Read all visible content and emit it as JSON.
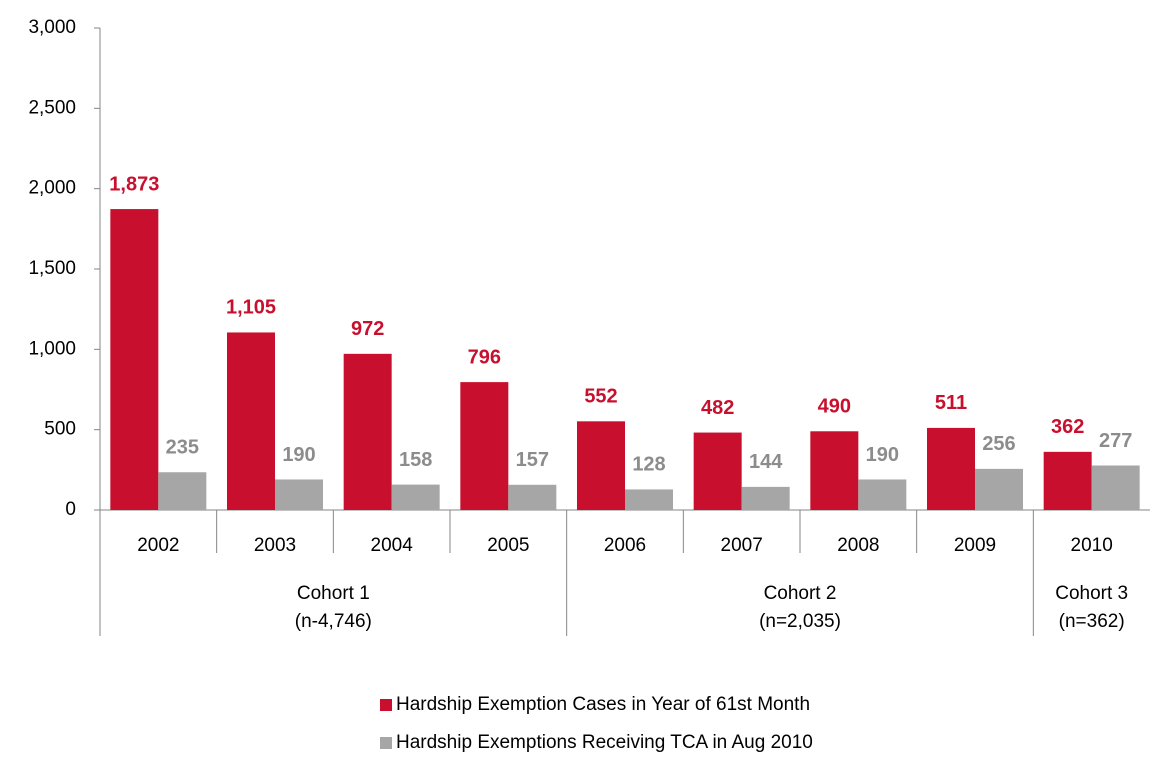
{
  "chart_data": {
    "type": "bar",
    "groups": [
      {
        "label": "Cohort 1",
        "sublabel": "(n-4,746)",
        "categories": [
          "2002",
          "2003",
          "2004",
          "2005"
        ]
      },
      {
        "label": "Cohort 2",
        "sublabel": "(n=2,035)",
        "categories": [
          "2006",
          "2007",
          "2008",
          "2009"
        ]
      },
      {
        "label": "Cohort 3",
        "sublabel": "(n=362)",
        "categories": [
          "2010"
        ]
      }
    ],
    "series": [
      {
        "name": "Hardship Exemption Cases in Year of 61st Month",
        "color": "#c8102e",
        "label_color": "#c8102e",
        "values": [
          1873,
          1105,
          972,
          796,
          552,
          482,
          490,
          511,
          362
        ],
        "value_labels": [
          "1,873",
          "1,105",
          "972",
          "796",
          "552",
          "482",
          "490",
          "511",
          "362"
        ]
      },
      {
        "name": "Hardship Exemptions Receiving TCA in Aug 2010",
        "color": "#a6a6a6",
        "label_color": "#8c8c8c",
        "values": [
          235,
          190,
          158,
          157,
          128,
          144,
          190,
          256,
          277
        ]
      }
    ],
    "ylim": [
      0,
      3000
    ],
    "yticks": [
      0,
      500,
      {
        "value": 1000,
        "label": "1,000"
      },
      {
        "value": 1500,
        "label": "1,500"
      },
      {
        "value": 2000,
        "label": "2,000"
      },
      {
        "value": 2500,
        "label": "2,500"
      },
      {
        "value": 3000,
        "label": "3,000"
      }
    ]
  }
}
